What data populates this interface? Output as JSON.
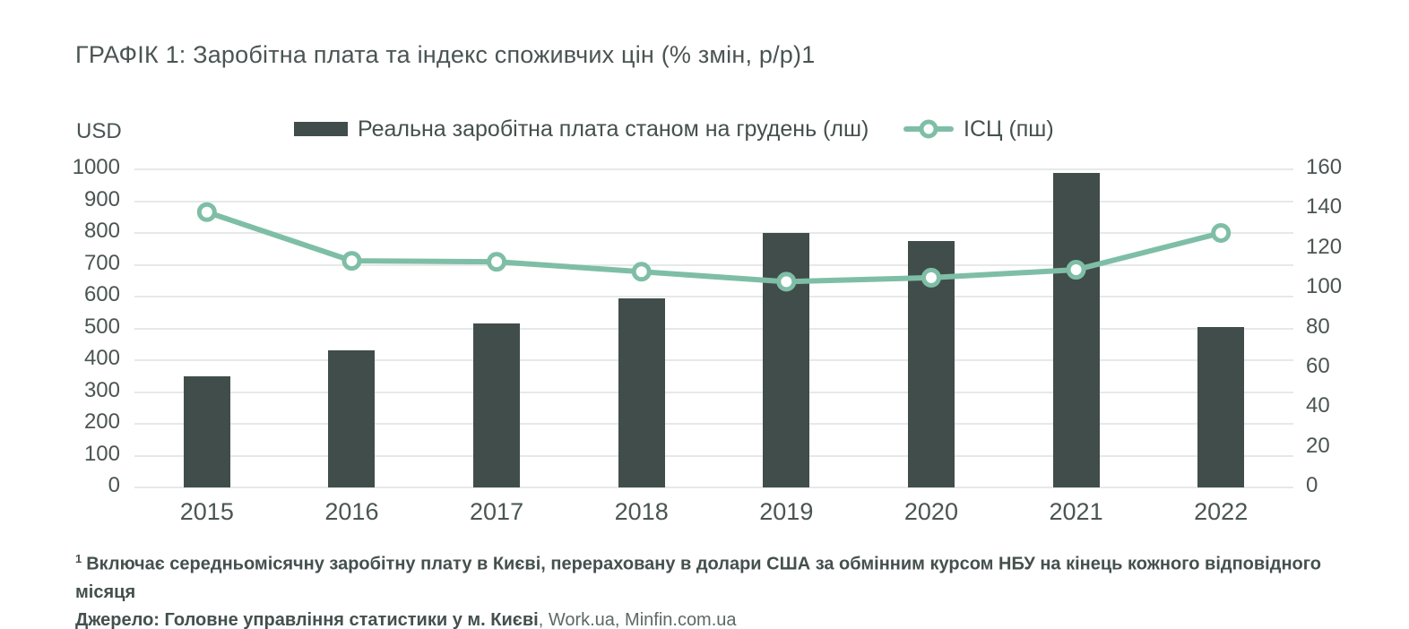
{
  "header": {
    "title": "ГРАФІК 1: Заробітна плата та індекс споживчих цін (% змін, р/р)1"
  },
  "legend": {
    "bars_label": "Реальна заробітна плата станом на грудень (лш)",
    "line_label": "ІСЦ (пш)"
  },
  "footnote": {
    "superscript": "1",
    "line1": "Включає середньомісячну заробітну плату в Києві, перераховану в долари США за обмінним курсом НБУ на кінець кожного відповідного місяця",
    "line2_bold": "Джерело: Головне управління статистики у м. Києві",
    "line2_regular": ", Work.ua, Minfin.com.ua"
  },
  "colors": {
    "bar": "#404d4b",
    "line": "#7fbea6",
    "grid": "#e6e9e9",
    "text": "#4a5553",
    "footnote_muted": "#5d6966",
    "background": "#ffffff"
  },
  "chart_data": {
    "type": "combo",
    "title": "ГРАФІК 1: Заробітна плата та індекс споживчих цін (% змін, р/р)1",
    "categories": [
      "2015",
      "2016",
      "2017",
      "2018",
      "2019",
      "2020",
      "2021",
      "2022"
    ],
    "series": [
      {
        "name": "Реальна заробітна плата станом на грудень (лш)",
        "kind": "bar",
        "axis": "left",
        "color": "#404d4b",
        "values": [
          350,
          430,
          515,
          595,
          800,
          775,
          990,
          505
        ]
      },
      {
        "name": "ІСЦ (пш)",
        "kind": "line",
        "axis": "right",
        "color": "#7fbea6",
        "marker": "open-circle",
        "values": [
          138.5,
          114,
          113.5,
          108.5,
          103.5,
          105.5,
          109.5,
          128
        ]
      }
    ],
    "left_axis": {
      "label": "USD",
      "min": 0,
      "max": 1000,
      "step": 100,
      "ticks": [
        1000,
        900,
        800,
        700,
        600,
        500,
        400,
        300,
        200,
        100,
        0
      ]
    },
    "right_axis": {
      "min": 0,
      "max": 160,
      "step": 20,
      "ticks": [
        160,
        140,
        120,
        100,
        80,
        60,
        40,
        20,
        0
      ]
    },
    "grid": "horizontal",
    "legend_position": "top"
  }
}
